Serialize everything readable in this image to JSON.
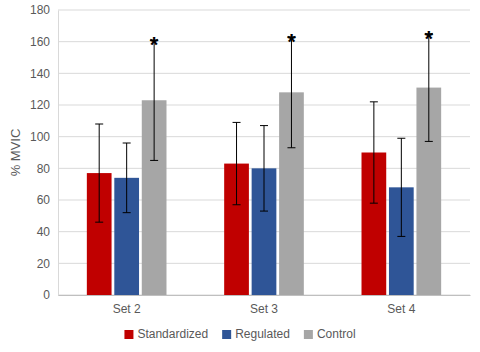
{
  "chart_data": {
    "type": "bar",
    "y_label": "% MVIC",
    "categories": [
      "Set 2",
      "Set 3",
      "Set 4"
    ],
    "series": [
      {
        "name": "Standardized",
        "color": "#c00000",
        "values": [
          77,
          83,
          90
        ],
        "errors": [
          31,
          26,
          32
        ]
      },
      {
        "name": "Regulated",
        "color": "#2f5597",
        "values": [
          74,
          80,
          68
        ],
        "errors": [
          22,
          27,
          31
        ]
      },
      {
        "name": "Control",
        "color": "#a6a6a6",
        "values": [
          123,
          128,
          131
        ],
        "errors": [
          38,
          35,
          34
        ]
      }
    ],
    "annotations": [
      {
        "text": "*",
        "category": "Set 2",
        "series": "Control"
      },
      {
        "text": "*",
        "category": "Set 3",
        "series": "Control"
      },
      {
        "text": "*",
        "category": "Set 4",
        "series": "Control"
      }
    ],
    "ylim": [
      0,
      180
    ],
    "yticks": [
      0,
      20,
      40,
      60,
      80,
      100,
      120,
      140,
      160,
      180
    ],
    "grid": true,
    "legend": "bottom"
  }
}
